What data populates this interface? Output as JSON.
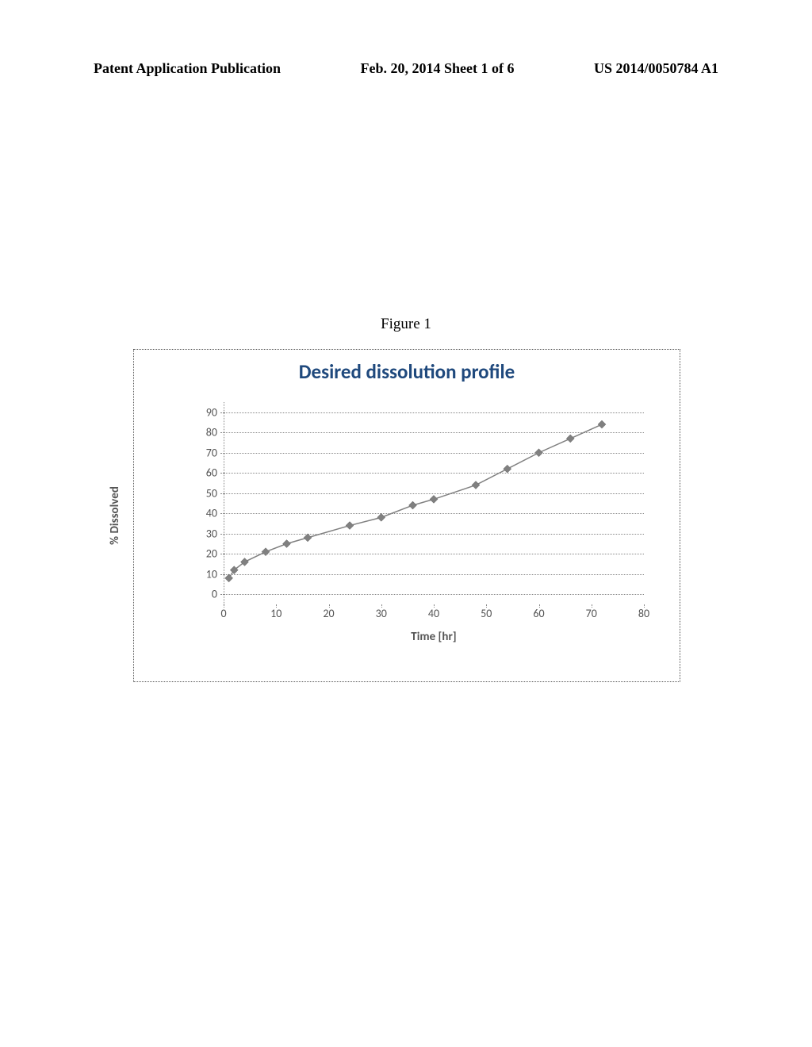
{
  "header": {
    "left": "Patent Application Publication",
    "center": "Feb. 20, 2014  Sheet 1 of 6",
    "right": "US 2014/0050784 A1"
  },
  "figure": {
    "label": "Figure 1"
  },
  "chart": {
    "type": "line",
    "title": "Desired dissolution profile",
    "title_fontsize": 25,
    "title_color": "#1f497d",
    "xlabel": "Time [hr]",
    "ylabel": "% Dissolved",
    "label_fontsize": 15,
    "label_color": "#555555",
    "tick_fontsize": 14,
    "tick_color": "#555555",
    "xlim": [
      0,
      80
    ],
    "ylim": [
      -5,
      95
    ],
    "xticks": [
      0,
      10,
      20,
      30,
      40,
      50,
      60,
      70,
      80
    ],
    "yticks": [
      0,
      10,
      20,
      30,
      40,
      50,
      60,
      70,
      80,
      90
    ],
    "grid_color": "#888888",
    "grid_style": "dotted",
    "background_color": "#ffffff",
    "border_color": "#555555",
    "line_color": "#808080",
    "line_width": 1.5,
    "marker_style": "diamond",
    "marker_size": 10,
    "marker_color": "#808080",
    "data": {
      "x": [
        1,
        2,
        4,
        8,
        12,
        16,
        24,
        30,
        36,
        40,
        48,
        54,
        60,
        66,
        72
      ],
      "y": [
        8,
        12,
        16,
        21,
        25,
        28,
        34,
        38,
        44,
        47,
        54,
        62,
        70,
        77,
        84
      ]
    }
  }
}
